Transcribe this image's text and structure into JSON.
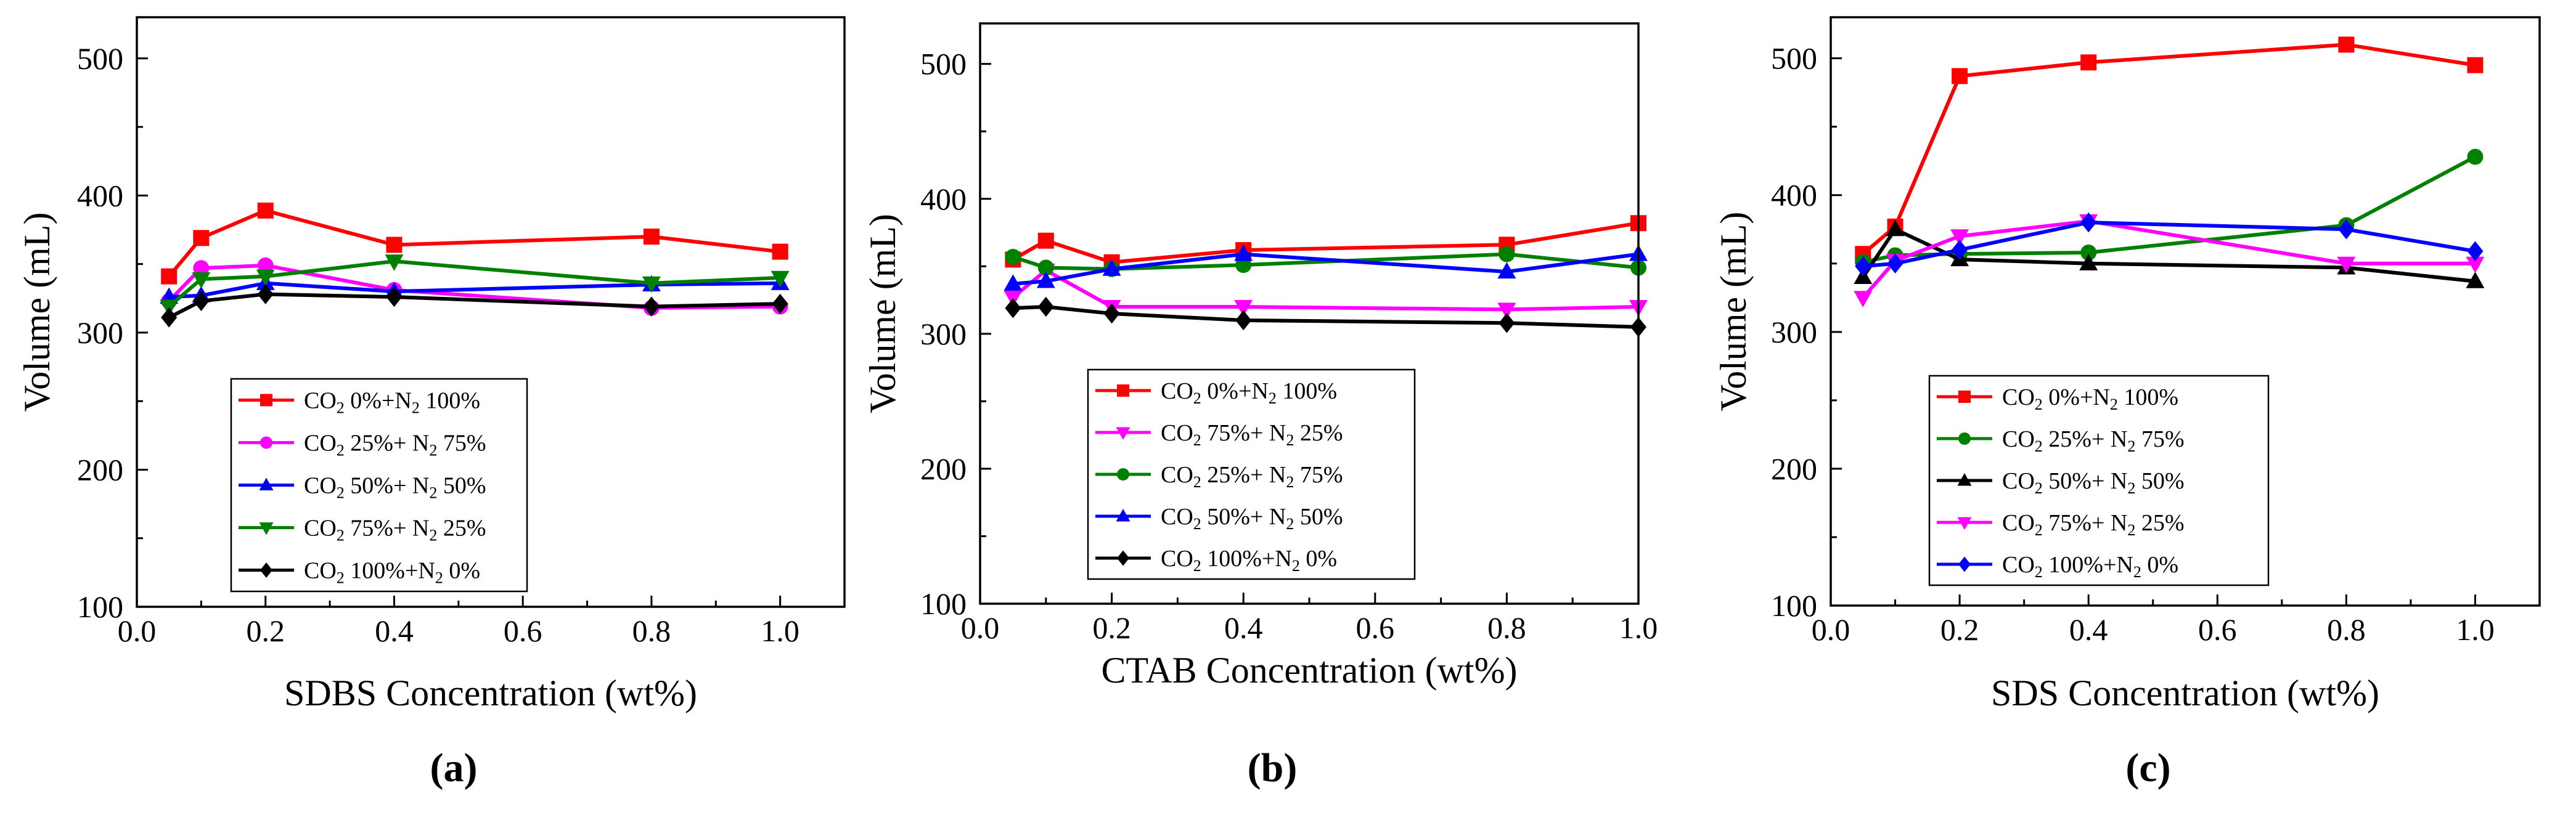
{
  "chart_data": [
    {
      "type": "line",
      "panel_label": "(a)",
      "xlabel": "SDBS Concentration (wt%)",
      "ylabel": "Volume (mL)",
      "xlim": [
        0.0,
        1.1
      ],
      "ylim": [
        100,
        530
      ],
      "xticks": [
        "0.0",
        "0.2",
        "0.4",
        "0.6",
        "0.8",
        "1.0"
      ],
      "yticks": [
        "100",
        "200",
        "300",
        "400",
        "500"
      ],
      "legend_position": "lower-left",
      "x": [
        0.05,
        0.1,
        0.2,
        0.4,
        0.8,
        1.0
      ],
      "series": [
        {
          "name": "CO2 0%+N2 100%",
          "legend": {
            "pre": "CO",
            "sub1": "2",
            "mid": " 0%+N",
            "sub2": "2",
            "post": " 100%"
          },
          "color": "#ff0000",
          "marker": "square",
          "values": [
            341,
            369,
            389,
            364,
            370,
            359
          ]
        },
        {
          "name": "CO2 25%+ N2 75%",
          "legend": {
            "pre": "CO",
            "sub1": "2",
            "mid": "  25%+ N",
            "sub2": "2",
            "post": " 75%"
          },
          "color": "#ff00ff",
          "marker": "circle",
          "values": [
            323,
            347,
            349,
            331,
            318,
            319
          ]
        },
        {
          "name": "CO2 50%+ N2 50%",
          "legend": {
            "pre": "CO",
            "sub1": "2",
            "mid": "  50%+ N",
            "sub2": "2",
            "post": " 50%"
          },
          "color": "#0000ff",
          "marker": "triangle-up",
          "values": [
            326,
            327,
            336,
            330,
            335,
            336
          ]
        },
        {
          "name": "CO2 75%+ N2 25%",
          "legend": {
            "pre": "CO",
            "sub1": "2",
            "mid": "  75%+ N",
            "sub2": "2",
            "post": " 25%"
          },
          "color": "#008000",
          "marker": "triangle-down",
          "values": [
            319,
            339,
            341,
            352,
            336,
            340
          ]
        },
        {
          "name": "CO2 100%+N2 0%",
          "legend": {
            "pre": "CO",
            "sub1": "2",
            "mid": " 100%+N",
            "sub2": "2",
            "post": " 0%"
          },
          "color": "#000000",
          "marker": "diamond",
          "values": [
            311,
            323,
            328,
            326,
            319,
            321
          ]
        }
      ]
    },
    {
      "type": "line",
      "panel_label": "(b)",
      "xlabel": "CTAB Concentration (wt%)",
      "ylabel": "Volume (mL)",
      "xlim": [
        0.0,
        1.0
      ],
      "ylim": [
        100,
        530
      ],
      "xticks": [
        "0.0",
        "0.2",
        "0.4",
        "0.6",
        "0.8",
        "1.0"
      ],
      "yticks": [
        "100",
        "200",
        "300",
        "400",
        "500"
      ],
      "legend_position": "lower-left",
      "x": [
        0.05,
        0.1,
        0.2,
        0.4,
        0.8,
        1.0
      ],
      "series": [
        {
          "name": "CO2 0%+N2 100%",
          "legend": {
            "pre": "CO",
            "sub1": "2",
            "mid": " 0%+N",
            "sub2": "2",
            "post": " 100%"
          },
          "color": "#ff0000",
          "marker": "square",
          "values": [
            355,
            369,
            353,
            362,
            366,
            382
          ]
        },
        {
          "name": "CO2 75%+ N2 25%",
          "legend": {
            "pre": "CO",
            "sub1": "2",
            "mid": "  75%+ N",
            "sub2": "2",
            "post": " 25%"
          },
          "color": "#ff00ff",
          "marker": "triangle-down",
          "values": [
            327,
            347,
            320,
            320,
            318,
            320
          ]
        },
        {
          "name": "CO2 25%+ N2 75%",
          "legend": {
            "pre": "CO",
            "sub1": "2",
            "mid": "  25%+ N",
            "sub2": "2",
            "post": " 75%"
          },
          "color": "#008000",
          "marker": "circle",
          "values": [
            357,
            349,
            348,
            351,
            359,
            349
          ]
        },
        {
          "name": "CO2 50%+ N2 50%",
          "legend": {
            "pre": "CO",
            "sub1": "2",
            "mid": "  50%+ N",
            "sub2": "2",
            "post": " 50%"
          },
          "color": "#0000ff",
          "marker": "triangle-up",
          "values": [
            337,
            339,
            348,
            359,
            346,
            359
          ]
        },
        {
          "name": "CO2 100%+N2 0%",
          "legend": {
            "pre": "CO",
            "sub1": "2",
            "mid": " 100%+N",
            "sub2": "2",
            "post": " 0%"
          },
          "color": "#000000",
          "marker": "diamond",
          "values": [
            319,
            320,
            315,
            310,
            308,
            305
          ]
        }
      ]
    },
    {
      "type": "line",
      "panel_label": "(c)",
      "xlabel": "SDS Concentration (wt%)",
      "ylabel": "Volume (mL)",
      "xlim": [
        0.0,
        1.1
      ],
      "ylim": [
        100,
        530
      ],
      "xticks": [
        "0.0",
        "0.2",
        "0.4",
        "0.6",
        "0.8",
        "1.0"
      ],
      "yticks": [
        "100",
        "200",
        "300",
        "400",
        "500"
      ],
      "legend_position": "lower-left",
      "x": [
        0.05,
        0.1,
        0.2,
        0.4,
        0.8,
        1.0
      ],
      "series": [
        {
          "name": "CO2 0%+N2 100%",
          "legend": {
            "pre": "CO",
            "sub1": "2",
            "mid": " 0%+N",
            "sub2": "2",
            "post": " 100%"
          },
          "color": "#ff0000",
          "marker": "square",
          "values": [
            357,
            377,
            487,
            497,
            510,
            495
          ]
        },
        {
          "name": "CO2 25%+ N2 75%",
          "legend": {
            "pre": "CO",
            "sub1": "2",
            "mid": "  25%+ N",
            "sub2": "2",
            "post": " 75%"
          },
          "color": "#008000",
          "marker": "circle",
          "values": [
            351,
            356,
            357,
            358,
            378,
            428
          ]
        },
        {
          "name": "CO2 50%+ N2 50%",
          "legend": {
            "pre": "CO",
            "sub1": "2",
            "mid": "  50%+ N",
            "sub2": "2",
            "post": " 50%"
          },
          "color": "#000000",
          "marker": "triangle-up",
          "values": [
            340,
            375,
            353,
            350,
            347,
            337
          ]
        },
        {
          "name": "CO2 75%+ N2 25%",
          "legend": {
            "pre": "CO",
            "sub1": "2",
            "mid": "  75%+ N",
            "sub2": "2",
            "post": " 25%"
          },
          "color": "#ff00ff",
          "marker": "triangle-down",
          "values": [
            325,
            352,
            370,
            381,
            350,
            350
          ]
        },
        {
          "name": "CO2 100%+N2 0%",
          "legend": {
            "pre": "CO",
            "sub1": "2",
            "mid": " 100%+N",
            "sub2": "2",
            "post": " 0%"
          },
          "color": "#0000ff",
          "marker": "diamond",
          "values": [
            348,
            350,
            360,
            380,
            375,
            359
          ]
        }
      ]
    }
  ]
}
